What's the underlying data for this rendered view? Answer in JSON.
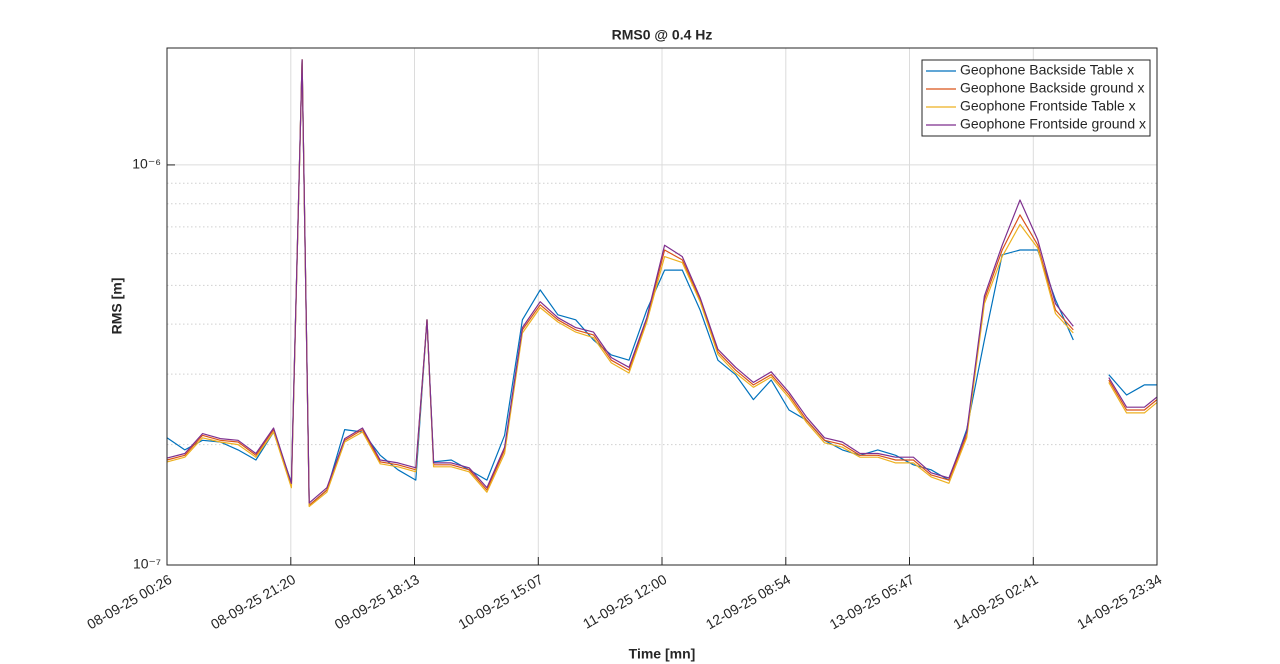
{
  "chart_data": {
    "type": "line",
    "title": "RMS0 @ 0.4 Hz",
    "x_label": "Time [mn]",
    "y_label": "RMS [m]",
    "x": [
      "08-09-25 00:26",
      "08-09-25 03:26",
      "08-09-25 06:26",
      "08-09-25 09:26",
      "08-09-25 12:26",
      "08-09-25 15:26",
      "08-09-25 18:26",
      "08-09-25 21:26",
      "08-09-25 23:14",
      "09-09-25 00:26",
      "09-09-25 03:26",
      "09-09-25 06:26",
      "09-09-25 09:26",
      "09-09-25 12:26",
      "09-09-25 15:26",
      "09-09-25 18:26",
      "09-09-25 20:20",
      "09-09-25 21:26",
      "10-09-25 00:26",
      "10-09-25 03:26",
      "10-09-25 06:26",
      "10-09-25 09:26",
      "10-09-25 12:26",
      "10-09-25 15:26",
      "10-09-25 18:26",
      "10-09-25 21:26",
      "11-09-25 00:26",
      "11-09-25 03:26",
      "11-09-25 06:26",
      "11-09-25 09:26",
      "11-09-25 12:26",
      "11-09-25 15:26",
      "11-09-25 18:26",
      "11-09-25 21:26",
      "12-09-25 00:26",
      "12-09-25 03:26",
      "12-09-25 06:26",
      "12-09-25 09:26",
      "12-09-25 12:26",
      "12-09-25 15:26",
      "12-09-25 18:26",
      "12-09-25 21:26",
      "13-09-25 00:26",
      "13-09-25 03:26",
      "13-09-25 06:26",
      "13-09-25 09:26",
      "13-09-25 12:26",
      "13-09-25 15:26",
      "13-09-25 18:26",
      "13-09-25 21:26",
      "14-09-25 00:26",
      "14-09-25 03:26",
      "14-09-25 06:26",
      "14-09-25 09:26",
      "14-09-25 12:26",
      "14-09-25 15:26",
      "14-09-25 18:26",
      "14-09-25 21:26",
      "14-09-25 23:34"
    ],
    "series": [
      {
        "name": "Geophone Backside Table x",
        "color": "#0072BD",
        "values": [
          2.08e-07,
          1.94e-07,
          2.05e-07,
          2.03e-07,
          1.94e-07,
          1.83e-07,
          2.15e-07,
          1.61e-07,
          1.83e-06,
          1.41e-07,
          1.54e-07,
          2.18e-07,
          2.15e-07,
          1.88e-07,
          1.73e-07,
          1.63e-07,
          4.1e-07,
          1.81e-07,
          1.83e-07,
          1.73e-07,
          1.63e-07,
          2.11e-07,
          4.1e-07,
          4.87e-07,
          4.22e-07,
          4.1e-07,
          3.65e-07,
          3.35e-07,
          3.25e-07,
          4.34e-07,
          5.46e-07,
          5.46e-07,
          4.34e-07,
          3.25e-07,
          2.99e-07,
          2.59e-07,
          2.9e-07,
          2.44e-07,
          2.3e-07,
          2.05e-07,
          1.94e-07,
          1.88e-07,
          1.94e-07,
          1.88e-07,
          1.78e-07,
          1.73e-07,
          1.63e-07,
          2.18e-07,
          3.65e-07,
          5.96e-07,
          6.13e-07,
          6.13e-07,
          4.6e-07,
          3.65e-07,
          null,
          2.99e-07,
          2.66e-07,
          2.82e-07,
          2.82e-07
        ]
      },
      {
        "name": "Geophone Backside ground x",
        "color": "#D95319",
        "values": [
          1.83e-07,
          1.88e-07,
          2.11e-07,
          2.05e-07,
          2.03e-07,
          1.88e-07,
          2.18e-07,
          1.58e-07,
          1.83e-06,
          1.41e-07,
          1.54e-07,
          2.05e-07,
          2.18e-07,
          1.81e-07,
          1.78e-07,
          1.73e-07,
          4.1e-07,
          1.78e-07,
          1.78e-07,
          1.73e-07,
          1.54e-07,
          1.94e-07,
          3.87e-07,
          4.47e-07,
          4.1e-07,
          3.87e-07,
          3.76e-07,
          3.25e-07,
          3.07e-07,
          4.1e-07,
          6.13e-07,
          5.79e-07,
          4.6e-07,
          3.41e-07,
          3.07e-07,
          2.82e-07,
          2.99e-07,
          2.66e-07,
          2.3e-07,
          2.05e-07,
          2e-07,
          1.88e-07,
          1.88e-07,
          1.83e-07,
          1.83e-07,
          1.68e-07,
          1.63e-07,
          2.11e-07,
          4.6e-07,
          6.13e-07,
          7.5e-07,
          6.31e-07,
          4.34e-07,
          3.87e-07,
          null,
          2.9e-07,
          2.44e-07,
          2.44e-07,
          2.59e-07
        ]
      },
      {
        "name": "Geophone Frontside Table x",
        "color": "#EDB120",
        "values": [
          1.81e-07,
          1.86e-07,
          2.08e-07,
          2.03e-07,
          2e-07,
          1.86e-07,
          2.15e-07,
          1.56e-07,
          1.83e-06,
          1.4e-07,
          1.52e-07,
          2.03e-07,
          2.15e-07,
          1.79e-07,
          1.76e-07,
          1.71e-07,
          4.1e-07,
          1.76e-07,
          1.76e-07,
          1.71e-07,
          1.52e-07,
          1.9e-07,
          3.8e-07,
          4.4e-07,
          4.05e-07,
          3.82e-07,
          3.7e-07,
          3.2e-07,
          3.02e-07,
          4.05e-07,
          5.9e-07,
          5.7e-07,
          4.55e-07,
          3.36e-07,
          3.02e-07,
          2.78e-07,
          2.95e-07,
          2.62e-07,
          2.27e-07,
          2.02e-07,
          1.97e-07,
          1.86e-07,
          1.86e-07,
          1.8e-07,
          1.8e-07,
          1.66e-07,
          1.6e-07,
          2.08e-07,
          4.5e-07,
          5.9e-07,
          7.1e-07,
          6.2e-07,
          4.25e-07,
          3.8e-07,
          null,
          2.86e-07,
          2.4e-07,
          2.4e-07,
          2.55e-07
        ]
      },
      {
        "name": "Geophone Frontside ground x",
        "color": "#7E2F8E",
        "values": [
          1.85e-07,
          1.9e-07,
          2.13e-07,
          2.07e-07,
          2.05e-07,
          1.9e-07,
          2.2e-07,
          1.6e-07,
          1.83e-06,
          1.43e-07,
          1.56e-07,
          2.07e-07,
          2.2e-07,
          1.83e-07,
          1.8e-07,
          1.75e-07,
          4.1e-07,
          1.8e-07,
          1.8e-07,
          1.75e-07,
          1.56e-07,
          1.97e-07,
          3.92e-07,
          4.55e-07,
          4.15e-07,
          3.92e-07,
          3.82e-07,
          3.3e-07,
          3.12e-07,
          4.15e-07,
          6.3e-07,
          5.9e-07,
          4.66e-07,
          3.46e-07,
          3.12e-07,
          2.86e-07,
          3.04e-07,
          2.7e-07,
          2.34e-07,
          2.08e-07,
          2.03e-07,
          1.9e-07,
          1.9e-07,
          1.86e-07,
          1.86e-07,
          1.7e-07,
          1.65e-07,
          2.15e-07,
          4.7e-07,
          6.3e-07,
          8.17e-07,
          6.5e-07,
          4.5e-07,
          3.95e-07,
          null,
          2.94e-07,
          2.48e-07,
          2.48e-07,
          2.63e-07
        ]
      }
    ],
    "xlim": [
      "08-09-25 00:26",
      "14-09-25 23:34"
    ],
    "xticks": [
      "08-09-25 00:26",
      "08-09-25 21:20",
      "09-09-25 18:13",
      "10-09-25 15:07",
      "11-09-25 12:00",
      "12-09-25 08:54",
      "13-09-25 05:47",
      "14-09-25 02:41",
      "14-09-25 23:34"
    ],
    "ylim": [
      1e-07,
      1.96e-06
    ],
    "yticks": [
      {
        "value": 1e-07,
        "label": "10⁻⁷"
      },
      {
        "value": 1e-06,
        "label": "10⁻⁶"
      }
    ],
    "log_y": true,
    "grid": true,
    "minor_grid": true,
    "legend": "northeast"
  }
}
